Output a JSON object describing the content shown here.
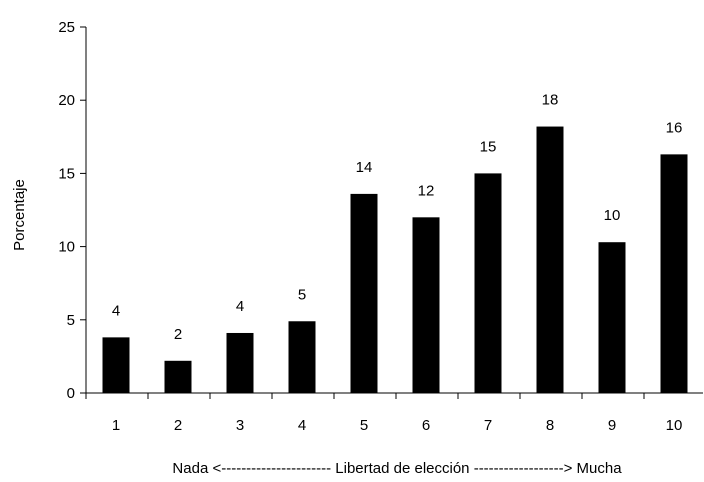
{
  "chart_data": {
    "type": "bar",
    "categories": [
      "1",
      "2",
      "3",
      "4",
      "5",
      "6",
      "7",
      "8",
      "9",
      "10"
    ],
    "values": [
      3.8,
      2.2,
      4.1,
      4.9,
      13.6,
      12.0,
      15.0,
      18.2,
      10.3,
      16.3
    ],
    "data_labels": [
      "4",
      "2",
      "4",
      "5",
      "14",
      "12",
      "15",
      "18",
      "10",
      "16"
    ],
    "xlabel": "Nada <---------------------- Libertad de elección ------------------> Mucha",
    "ylabel": "Porcentaje",
    "ylim": [
      0,
      25
    ],
    "yticks": [
      "0",
      "5",
      "10",
      "15",
      "20",
      "25"
    ],
    "grid": false,
    "bar_color": "#000000"
  }
}
